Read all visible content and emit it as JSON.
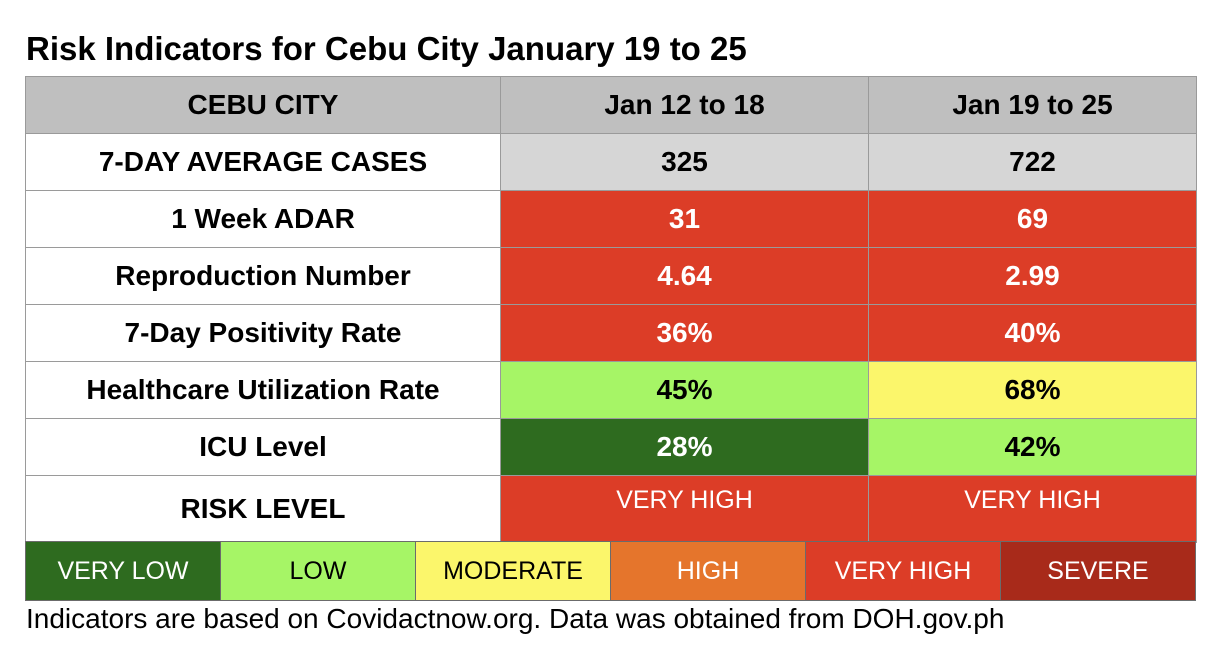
{
  "title": "Risk Indicators for Cebu City January 19 to 25",
  "table": {
    "headers": [
      "CEBU CITY",
      "Jan 12 to 18",
      "Jan 19 to 25"
    ],
    "rows": [
      {
        "label": "7-DAY AVERAGE CASES",
        "values": [
          "325",
          "722"
        ],
        "colors": [
          "#d6d6d6",
          "#d6d6d6"
        ]
      },
      {
        "label": "1 Week ADAR",
        "values": [
          "31",
          "69"
        ],
        "colors": [
          "#dc3d27",
          "#dc3d27"
        ]
      },
      {
        "label": "Reproduction Number",
        "values": [
          "4.64",
          "2.99"
        ],
        "colors": [
          "#dc3d27",
          "#dc3d27"
        ]
      },
      {
        "label": "7-Day Positivity Rate",
        "values": [
          "36%",
          "40%"
        ],
        "colors": [
          "#dc3d27",
          "#dc3d27"
        ]
      },
      {
        "label": "Healthcare Utilization Rate",
        "values": [
          "45%",
          "68%"
        ],
        "colors": [
          "#a6f566",
          "#fbf66b"
        ]
      },
      {
        "label": "ICU Level",
        "values": [
          "28%",
          "42%"
        ],
        "colors": [
          "#2e6b1f",
          "#a6f566"
        ]
      },
      {
        "label": "RISK LEVEL",
        "values": [
          "VERY HIGH",
          "VERY HIGH"
        ],
        "colors": [
          "#dc3d27",
          "#dc3d27"
        ]
      }
    ]
  },
  "legend": [
    {
      "label": "VERY LOW",
      "color": "#2e6b1f"
    },
    {
      "label": "LOW",
      "color": "#a6f566"
    },
    {
      "label": "MODERATE",
      "color": "#fbf66b"
    },
    {
      "label": "HIGH",
      "color": "#e5752c"
    },
    {
      "label": "VERY HIGH",
      "color": "#dc3d27"
    },
    {
      "label": "SEVERE",
      "color": "#a82a1a"
    }
  ],
  "footnote": "Indicators are based on Covidactnow.org. Data was obtained from DOH.gov.ph"
}
